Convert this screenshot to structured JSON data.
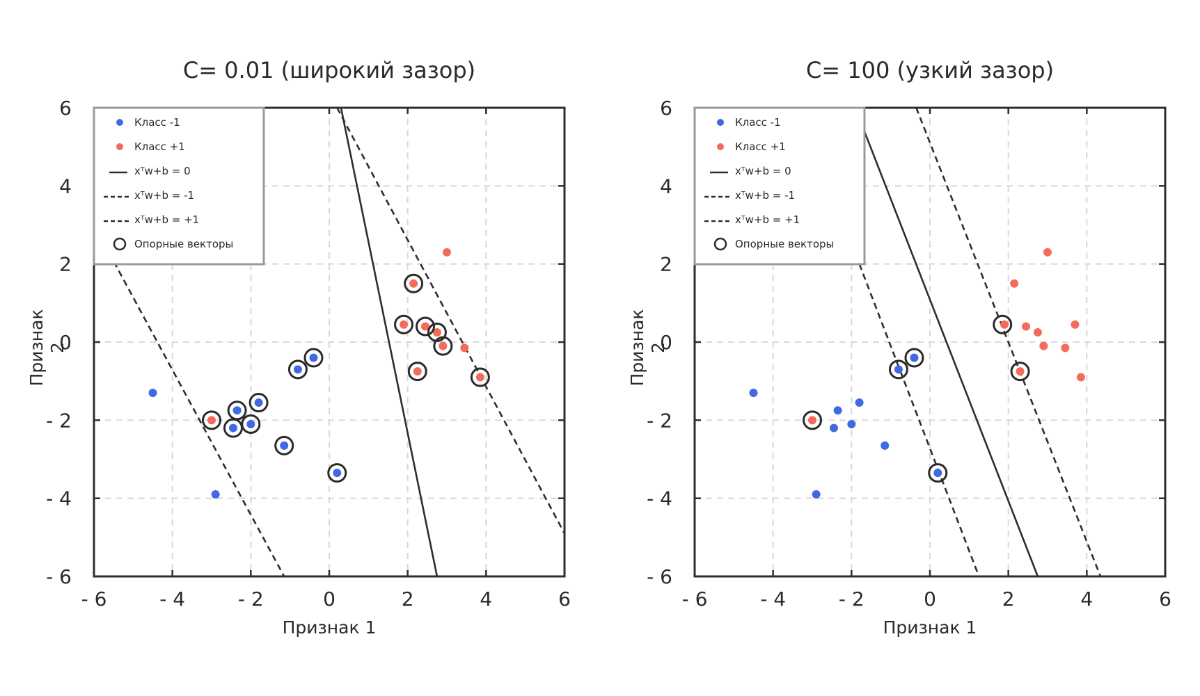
{
  "chart_data": [
    {
      "type": "scatter",
      "title": "C= 0.01 (широкий зазор)",
      "xlabel": "Признак 1",
      "ylabel": "Признак 2",
      "xlim": [
        -6,
        6
      ],
      "ylim": [
        -6,
        6
      ],
      "xticks": [
        -6,
        -4,
        -2,
        0,
        2,
        4,
        6
      ],
      "yticks": [
        -6,
        -4,
        -2,
        0,
        2,
        4,
        6
      ],
      "grid": true,
      "legend_position": "top-left",
      "series": [
        {
          "name": "Класс -1",
          "color": "#4169e1",
          "points": [
            [
              -4.5,
              -1.3
            ],
            [
              -2.9,
              -3.9
            ],
            [
              -2.35,
              -1.75
            ],
            [
              -2.45,
              -2.2
            ],
            [
              -2.0,
              -2.1
            ],
            [
              -1.8,
              -1.55
            ],
            [
              -1.15,
              -2.65
            ],
            [
              -0.8,
              -0.7
            ],
            [
              -0.4,
              -0.4
            ],
            [
              0.2,
              -3.35
            ]
          ]
        },
        {
          "name": "Класс +1",
          "color": "#f26b5b",
          "points": [
            [
              3.0,
              2.3
            ],
            [
              2.15,
              1.5
            ],
            [
              1.9,
              0.45
            ],
            [
              2.45,
              0.4
            ],
            [
              2.75,
              0.25
            ],
            [
              2.9,
              -0.1
            ],
            [
              3.45,
              -0.15
            ],
            [
              2.25,
              -0.75
            ],
            [
              3.85,
              -0.9
            ],
            [
              -3.0,
              -2.0
            ]
          ]
        }
      ],
      "lines": [
        {
          "name": "xᵀw+b = 0",
          "style": "solid",
          "points": [
            [
              0.3,
              6.0
            ],
            [
              2.75,
              -6.0
            ]
          ]
        },
        {
          "name": "xᵀw+b = -1",
          "style": "dashed",
          "points": [
            [
              -6.0,
              3.0
            ],
            [
              -1.15,
              -6.0
            ]
          ]
        },
        {
          "name": "xᵀw+b = +1",
          "style": "dashed",
          "points": [
            [
              0.2,
              6.0
            ],
            [
              6.0,
              -4.9
            ]
          ]
        }
      ],
      "support_vectors": [
        [
          -3.0,
          -2.0
        ],
        [
          -2.35,
          -1.75
        ],
        [
          -2.45,
          -2.2
        ],
        [
          -2.0,
          -2.1
        ],
        [
          -1.8,
          -1.55
        ],
        [
          -1.15,
          -2.65
        ],
        [
          -0.8,
          -0.7
        ],
        [
          -0.4,
          -0.4
        ],
        [
          0.2,
          -3.35
        ],
        [
          2.15,
          1.5
        ],
        [
          1.9,
          0.45
        ],
        [
          2.45,
          0.4
        ],
        [
          2.75,
          0.25
        ],
        [
          2.9,
          -0.1
        ],
        [
          2.25,
          -0.75
        ],
        [
          3.85,
          -0.9
        ]
      ],
      "legend": {
        "class_neg": "Класс -1",
        "class_pos": "Класс +1",
        "boundary": "xᵀw+b = 0",
        "margin_neg": "xᵀw+b = -1",
        "margin_pos": "xᵀw+b = +1",
        "support": "Опорные векторы"
      }
    },
    {
      "type": "scatter",
      "title": "C= 100 (узкий зазор)",
      "xlabel": "Признак 1",
      "ylabel": "Признак 2",
      "xlim": [
        -6,
        6
      ],
      "ylim": [
        -6,
        6
      ],
      "xticks": [
        -6,
        -4,
        -2,
        0,
        2,
        4,
        6
      ],
      "yticks": [
        -6,
        -4,
        -2,
        0,
        2,
        4,
        6
      ],
      "grid": true,
      "legend_position": "top-left",
      "series": [
        {
          "name": "Класс -1",
          "color": "#4169e1",
          "points": [
            [
              -4.5,
              -1.3
            ],
            [
              -2.9,
              -3.9
            ],
            [
              -2.35,
              -1.75
            ],
            [
              -2.45,
              -2.2
            ],
            [
              -2.0,
              -2.1
            ],
            [
              -1.8,
              -1.55
            ],
            [
              -1.15,
              -2.65
            ],
            [
              -0.8,
              -0.7
            ],
            [
              -0.4,
              -0.4
            ],
            [
              0.2,
              -3.35
            ]
          ]
        },
        {
          "name": "Класс +1",
          "color": "#f26b5b",
          "points": [
            [
              3.0,
              2.3
            ],
            [
              2.15,
              1.5
            ],
            [
              1.9,
              0.45
            ],
            [
              2.45,
              0.4
            ],
            [
              2.75,
              0.25
            ],
            [
              2.9,
              -0.1
            ],
            [
              3.45,
              -0.15
            ],
            [
              3.7,
              0.45
            ],
            [
              2.3,
              -0.75
            ],
            [
              3.85,
              -0.9
            ],
            [
              -3.0,
              -2.0
            ]
          ]
        }
      ],
      "lines": [
        {
          "name": "xᵀw+b = 0",
          "style": "solid",
          "points": [
            [
              -1.75,
              5.6
            ],
            [
              2.75,
              -6.0
            ]
          ]
        },
        {
          "name": "xᵀw+b = -1",
          "style": "dashed",
          "points": [
            [
              -1.8,
              2.0
            ],
            [
              1.25,
              -6.0
            ]
          ]
        },
        {
          "name": "xᵀw+b = +1",
          "style": "dashed",
          "points": [
            [
              -0.35,
              6.0
            ],
            [
              4.35,
              -6.0
            ]
          ]
        }
      ],
      "support_vectors": [
        [
          -3.0,
          -2.0
        ],
        [
          -0.8,
          -0.7
        ],
        [
          -0.4,
          -0.4
        ],
        [
          0.2,
          -3.35
        ],
        [
          1.85,
          0.45
        ],
        [
          2.3,
          -0.75
        ]
      ],
      "legend": {
        "class_neg": "Класс -1",
        "class_pos": "Класс +1",
        "boundary": "xᵀw+b = 0",
        "margin_neg": "xᵀw+b = -1",
        "margin_pos": "xᵀw+b = +1",
        "support": "Опорные векторы"
      }
    }
  ]
}
